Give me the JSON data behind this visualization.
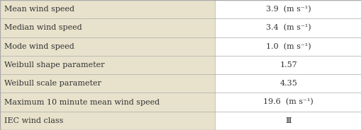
{
  "rows": [
    {
      "label": "Mean wind speed",
      "value": "3.9  (m s⁻¹)"
    },
    {
      "label": "Median wind speed",
      "value": "3.4  (m s⁻¹)"
    },
    {
      "label": "Mode wind speed",
      "value": "1.0  (m s⁻¹)"
    },
    {
      "label": "Weibull shape parameter",
      "value": "1.57"
    },
    {
      "label": "Weibull scale parameter",
      "value": "4.35"
    },
    {
      "label": "Maximum 10 minute mean wind speed",
      "value": "19.6  (m s⁻¹)"
    },
    {
      "label": "IEC wind class",
      "value": "Ⅲ"
    }
  ],
  "col_split": 0.595,
  "bg_color": "#e8e2cc",
  "right_bg_color": "#ffffff",
  "border_color": "#aaaaaa",
  "text_color": "#333333",
  "font_size": 8.0,
  "outer_lw": 1.0,
  "inner_lw": 0.5
}
